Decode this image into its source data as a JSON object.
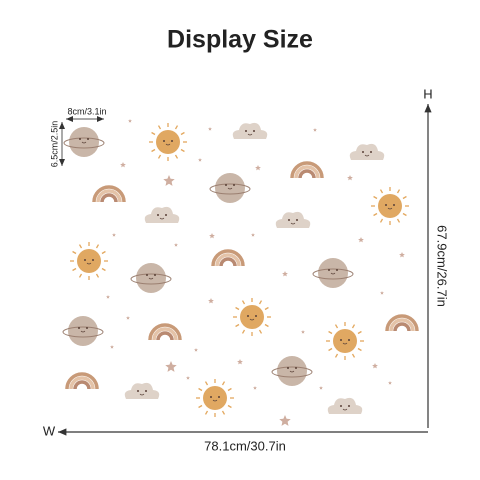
{
  "title": "Display Size",
  "item_width": "8cm/3.1in",
  "item_height": "6.5cm/2.5in",
  "height_label": "H",
  "height": "67.9cm/26.7in",
  "width_label": "W",
  "width": "78.1cm/30.7in"
}
